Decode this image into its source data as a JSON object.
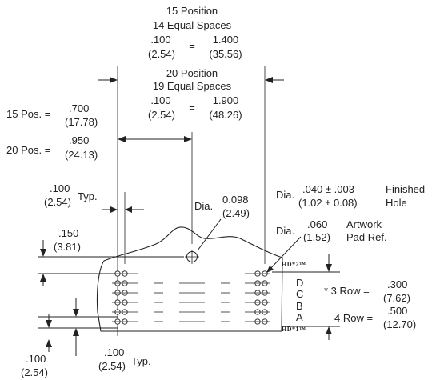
{
  "pos15": {
    "title": "15 Position",
    "spaces": "14 Equal Spaces",
    "pitch_in": ".100",
    "equals": "=",
    "total_in": "1.400",
    "pitch_mm": "(2.54)",
    "total_mm": "(35.56)"
  },
  "pos20": {
    "title": "20 Position",
    "spaces": "19 Equal Spaces",
    "pitch_in": ".100",
    "equals": "=",
    "total_in": "1.900",
    "pitch_mm": "(2.54)",
    "total_mm": "(48.26)"
  },
  "offset15": {
    "prefix": "15 Pos. =",
    "in": ".700",
    "mm": "(17.78)"
  },
  "offset20": {
    "prefix": "20 Pos. =",
    "in": ".950",
    "mm": "(24.13)"
  },
  "pitch_typ": {
    "in": ".100",
    "mm": "(2.54)",
    "typ": "Typ."
  },
  "hole": {
    "prefix": "Dia.",
    "in": "0.098",
    "mm": "(2.49)"
  },
  "edge": {
    "in": ".150",
    "mm": "(3.81)"
  },
  "finished_hole": {
    "prefix": "Dia.",
    "in": ".040 ± .003",
    "mm": "(1.02 ± 0.08)",
    "note1": "Finished",
    "note2": "Hole"
  },
  "artwork": {
    "prefix": "Dia.",
    "in": ".060",
    "mm": "(1.52)",
    "note1": "Artwork",
    "note2": "Pad Ref."
  },
  "hd2": "HD*2™",
  "hd1": "HD*1™",
  "rows": [
    "D",
    "C",
    "B",
    "A"
  ],
  "row3": {
    "prefix": "* 3 Row =",
    "in": ".300",
    "mm": "(7.62)"
  },
  "row4": {
    "prefix": "4 Row =",
    "in": ".500",
    "mm": "(12.70)"
  },
  "bottom_left": {
    "in": ".100",
    "mm": "(2.54)"
  },
  "bottom_typ": {
    "in": ".100",
    "mm": "(2.54)",
    "typ": "Typ."
  }
}
